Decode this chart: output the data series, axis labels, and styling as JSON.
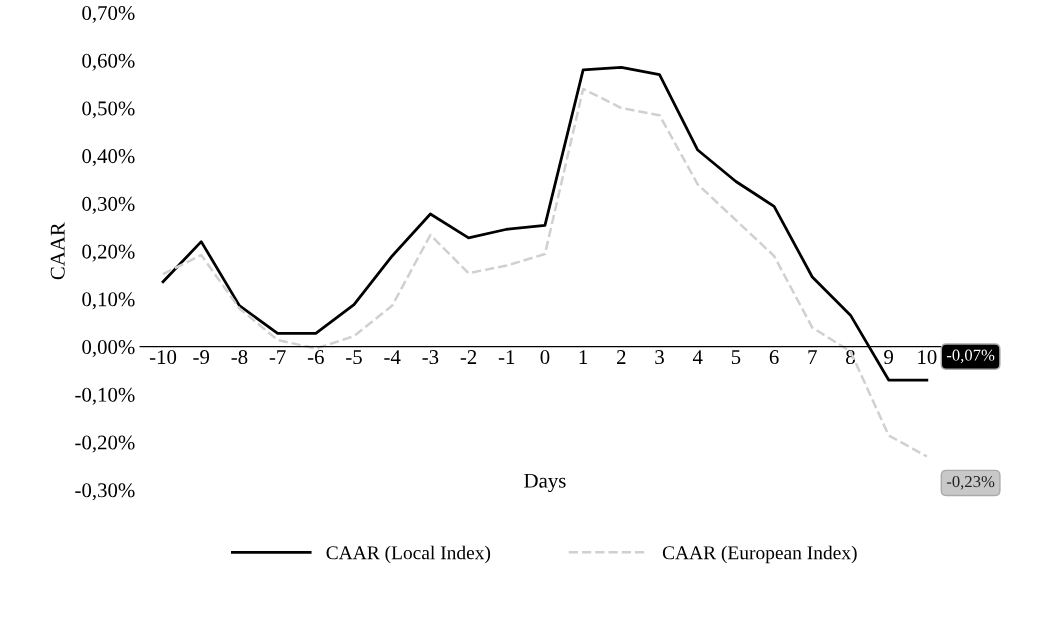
{
  "chart_data": {
    "type": "line",
    "xlabel": "Days",
    "ylabel": "CAAR",
    "categories": [
      "-10",
      "-9",
      "-8",
      "-7",
      "-6",
      "-5",
      "-4",
      "-3",
      "-2",
      "-1",
      "0",
      "1",
      "2",
      "3",
      "4",
      "5",
      "6",
      "7",
      "8",
      "9",
      "10"
    ],
    "series": [
      {
        "name": "CAAR (Local Index)",
        "color": "#000000",
        "line_style": "solid",
        "values": [
          0.136,
          0.22,
          0.086,
          0.028,
          0.028,
          0.088,
          0.19,
          0.278,
          0.228,
          0.246,
          0.254,
          0.58,
          0.585,
          0.57,
          0.412,
          0.346,
          0.294,
          0.146,
          0.066,
          -0.07,
          -0.07
        ],
        "value_labels": [
          null,
          null,
          null,
          null,
          null,
          null,
          null,
          null,
          null,
          null,
          null,
          null,
          null,
          null,
          null,
          null,
          null,
          null,
          null,
          null,
          "-0,07%"
        ]
      },
      {
        "name": "CAAR (European Index)",
        "color": "#d0d0d0",
        "line_style": "dashed",
        "values": [
          0.152,
          0.192,
          0.08,
          0.014,
          -0.004,
          0.022,
          0.086,
          0.234,
          0.154,
          0.17,
          0.194,
          0.54,
          0.5,
          0.485,
          0.34,
          0.265,
          0.19,
          0.04,
          -0.01,
          -0.186,
          -0.23
        ],
        "value_labels": [
          null,
          null,
          null,
          null,
          null,
          null,
          null,
          null,
          null,
          null,
          null,
          null,
          null,
          null,
          null,
          null,
          null,
          null,
          null,
          null,
          "-0,23%"
        ]
      }
    ],
    "ylim": [
      -0.3,
      0.7
    ],
    "yticks": [
      {
        "value": -0.3,
        "label": "-0,30%"
      },
      {
        "value": -0.2,
        "label": "-0,20%"
      },
      {
        "value": -0.1,
        "label": "-0,10%"
      },
      {
        "value": 0,
        "label": "0,00%"
      },
      {
        "value": 0.1,
        "label": "0,10%"
      },
      {
        "value": 0.2,
        "label": "0,20%"
      },
      {
        "value": 0.3,
        "label": "0,30%"
      },
      {
        "value": 0.4,
        "label": "0,40%"
      },
      {
        "value": 0.5,
        "label": "0,50%"
      },
      {
        "value": 0.6,
        "label": "0,60%"
      },
      {
        "value": 0.7,
        "label": "0,70%"
      }
    ],
    "grid": false,
    "legend": "bottom",
    "marker": "none"
  }
}
